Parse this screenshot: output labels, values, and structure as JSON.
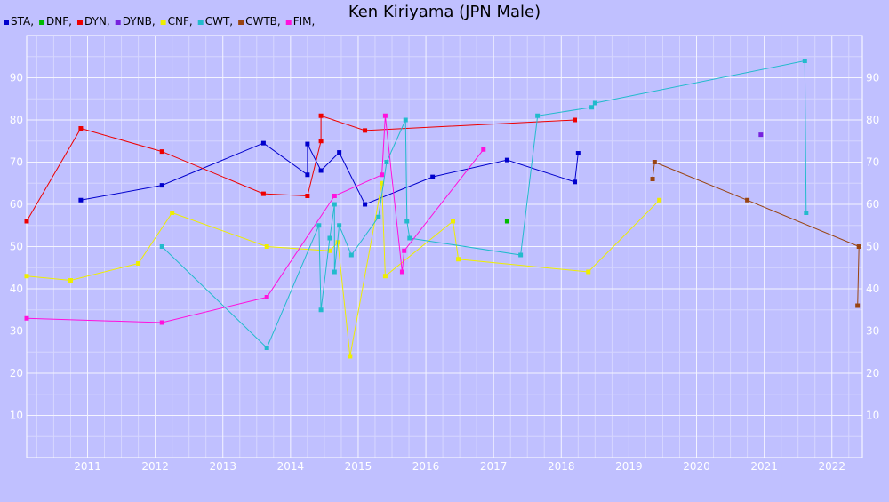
{
  "chart_data": {
    "type": "line",
    "title": "Ken Kiriyama (JPN Male)",
    "xlabel": "",
    "ylabel": "",
    "xlim": [
      2010.1,
      2022.45
    ],
    "ylim": [
      0,
      100
    ],
    "x_ticks": [
      2011,
      2012,
      2013,
      2014,
      2015,
      2016,
      2017,
      2018,
      2019,
      2020,
      2021,
      2022
    ],
    "x_tick_labels": [
      "2011",
      "2012",
      "2013",
      "2014",
      "2015",
      "2016",
      "2017",
      "2018",
      "2019",
      "2020",
      "2021",
      "2022"
    ],
    "y_ticks": [
      10,
      20,
      30,
      40,
      50,
      60,
      70,
      80,
      90
    ],
    "y_tick_labels": [
      "10",
      "20",
      "30",
      "40",
      "50",
      "60",
      "70",
      "80",
      "90"
    ],
    "grid": true,
    "legend_position": "top-left",
    "background": "#c0c0ff",
    "series": [
      {
        "name": "STA,",
        "color": "#0000cc",
        "points": [
          [
            2010.9,
            61
          ],
          [
            2012.1,
            64.5
          ],
          [
            2013.6,
            74.5
          ],
          [
            2014.25,
            67
          ],
          [
            2014.25,
            74.3
          ],
          [
            2014.45,
            68
          ],
          [
            2014.72,
            72.3
          ],
          [
            2015.1,
            60
          ],
          [
            2016.1,
            66.5
          ],
          [
            2017.2,
            70.5
          ],
          [
            2018.2,
            65.3
          ],
          [
            2018.25,
            72.1
          ]
        ]
      },
      {
        "name": "DNF,",
        "color": "#00bb00",
        "points": [
          [
            2017.2,
            56
          ]
        ]
      },
      {
        "name": "DYN,",
        "color": "#ee0000",
        "points": [
          [
            2010.1,
            56
          ],
          [
            2010.9,
            78
          ],
          [
            2012.1,
            72.5
          ],
          [
            2013.6,
            62.5
          ],
          [
            2014.25,
            62
          ],
          [
            2014.45,
            75
          ],
          [
            2014.45,
            81
          ],
          [
            2015.1,
            77.5
          ],
          [
            2018.2,
            80
          ]
        ]
      },
      {
        "name": "DYNB,",
        "color": "#7722dd",
        "points": [
          [
            2020.95,
            76.5
          ]
        ]
      },
      {
        "name": "CNF,",
        "color": "#eeee00",
        "points": [
          [
            2010.1,
            43
          ],
          [
            2010.75,
            42
          ],
          [
            2011.75,
            46
          ],
          [
            2012.25,
            58
          ],
          [
            2013.65,
            50
          ],
          [
            2014.58,
            49
          ],
          [
            2014.7,
            51
          ],
          [
            2014.88,
            24
          ],
          [
            2015.35,
            65
          ],
          [
            2015.4,
            43
          ],
          [
            2016.4,
            56
          ],
          [
            2016.48,
            47
          ],
          [
            2018.4,
            44
          ],
          [
            2019.45,
            61
          ]
        ]
      },
      {
        "name": "CWT,",
        "color": "#22bbcc",
        "points": [
          [
            2012.1,
            50
          ],
          [
            2013.65,
            26
          ],
          [
            2014.42,
            55
          ],
          [
            2014.45,
            35
          ],
          [
            2014.58,
            52
          ],
          [
            2014.65,
            60
          ],
          [
            2014.65,
            44
          ],
          [
            2014.72,
            55
          ],
          [
            2014.9,
            48
          ],
          [
            2015.3,
            57
          ],
          [
            2015.42,
            70
          ],
          [
            2015.7,
            80
          ],
          [
            2015.72,
            56
          ],
          [
            2015.76,
            52
          ],
          [
            2017.4,
            48
          ],
          [
            2017.65,
            81
          ],
          [
            2018.45,
            83
          ],
          [
            2018.5,
            84
          ],
          [
            2021.6,
            94
          ],
          [
            2021.62,
            58
          ]
        ]
      },
      {
        "name": "CWTB,",
        "color": "#994411",
        "points": [
          [
            2019.35,
            66
          ],
          [
            2019.38,
            70
          ],
          [
            2020.75,
            61
          ],
          [
            2022.4,
            50
          ],
          [
            2022.38,
            36
          ]
        ]
      },
      {
        "name": "FIM,",
        "color": "#ff11dd",
        "points": [
          [
            2010.1,
            33
          ],
          [
            2012.1,
            32
          ],
          [
            2013.65,
            38
          ],
          [
            2014.65,
            62
          ],
          [
            2015.35,
            67
          ],
          [
            2015.4,
            81
          ],
          [
            2015.65,
            44
          ],
          [
            2015.68,
            49
          ],
          [
            2016.85,
            73
          ]
        ]
      }
    ]
  }
}
